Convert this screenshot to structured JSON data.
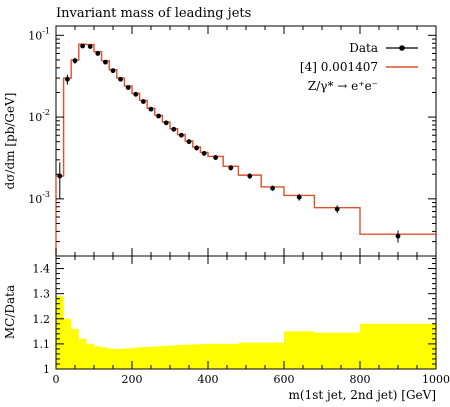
{
  "chart_data": [
    {
      "type": "line",
      "title": "Invariant mass of leading jets",
      "xlabel": "m(1st jet, 2nd jet) [GeV]",
      "ylabel": "dσ/dm [pb/GeV]",
      "ylog": true,
      "xlim": [
        0,
        1000
      ],
      "ylim": [
        0.0002,
        0.13
      ],
      "legend_position": "top-right",
      "y_tick_labels": [
        "10^{-1}",
        "10^{-2}",
        "10^{-3}"
      ],
      "x_tick_labels": [
        "0",
        "200",
        "400",
        "600",
        "800",
        "1000"
      ],
      "x_tick_values": [
        0,
        200,
        400,
        600,
        800,
        1000
      ],
      "bin_edges": [
        0,
        20,
        40,
        60,
        80,
        100,
        120,
        140,
        160,
        180,
        200,
        220,
        240,
        260,
        280,
        300,
        320,
        340,
        360,
        380,
        400,
        440,
        480,
        540,
        600,
        680,
        800,
        1000
      ],
      "series": [
        {
          "name": "Data",
          "kind": "points",
          "color": "#000000",
          "x": [
            10,
            30,
            50,
            70,
            90,
            110,
            130,
            150,
            170,
            190,
            210,
            230,
            250,
            270,
            290,
            310,
            330,
            350,
            370,
            390,
            420,
            460,
            510,
            570,
            640,
            740,
            900
          ],
          "y": [
            0.0019,
            0.029,
            0.049,
            0.074,
            0.073,
            0.06,
            0.047,
            0.037,
            0.029,
            0.023,
            0.019,
            0.0155,
            0.0125,
            0.0103,
            0.0085,
            0.0071,
            0.006,
            0.005,
            0.0042,
            0.0036,
            0.0032,
            0.0024,
            0.0019,
            0.00135,
            0.00105,
            0.00075,
            0.00035
          ],
          "yerr": [
            0.0009,
            0.004,
            0.004,
            0.004,
            0.004,
            0.003,
            0.0025,
            0.002,
            0.0015,
            0.0012,
            0.001,
            0.0008,
            0.0007,
            0.0006,
            0.0005,
            0.0004,
            0.0004,
            0.0003,
            0.0003,
            0.00025,
            0.0002,
            0.00018,
            0.00015,
            0.0001,
            0.0001,
            8e-05,
            6e-05
          ]
        },
        {
          "name": "[4] 0.001407",
          "kind": "step",
          "color": "#e0502a",
          "values": [
            0.0019,
            0.03,
            0.05,
            0.078,
            0.077,
            0.063,
            0.049,
            0.038,
            0.03,
            0.024,
            0.0195,
            0.016,
            0.0128,
            0.0105,
            0.0087,
            0.0072,
            0.0061,
            0.0051,
            0.0043,
            0.0037,
            0.0033,
            0.0025,
            0.00195,
            0.0014,
            0.0011,
            0.00078,
            0.00037
          ]
        }
      ],
      "legend_extra": "Z/γ* → e⁺e⁻"
    },
    {
      "type": "area",
      "ylabel": "MC/Data",
      "xlabel": "m(1st jet, 2nd jet) [GeV]",
      "xlim": [
        0,
        1000
      ],
      "ylim": [
        1.0,
        1.45
      ],
      "y_tick_labels": [
        "1",
        "1.1",
        "1.2",
        "1.3",
        "1.4"
      ],
      "y_tick_values": [
        1.0,
        1.1,
        1.2,
        1.3,
        1.4
      ],
      "x_tick_labels": [
        "0",
        "200",
        "400",
        "600",
        "800",
        "1000"
      ],
      "x_tick_values": [
        0,
        200,
        400,
        600,
        800,
        1000
      ],
      "fill_color": "#ffff00",
      "bin_edges": [
        0,
        20,
        40,
        60,
        80,
        100,
        120,
        140,
        160,
        180,
        200,
        220,
        240,
        260,
        280,
        300,
        320,
        340,
        360,
        380,
        400,
        440,
        480,
        540,
        600,
        680,
        800,
        1000
      ],
      "values": [
        1.29,
        1.2,
        1.16,
        1.12,
        1.1,
        1.09,
        1.085,
        1.08,
        1.08,
        1.082,
        1.085,
        1.087,
        1.088,
        1.09,
        1.092,
        1.094,
        1.096,
        1.097,
        1.098,
        1.099,
        1.1,
        1.1,
        1.105,
        1.105,
        1.15,
        1.145,
        1.18
      ]
    }
  ]
}
